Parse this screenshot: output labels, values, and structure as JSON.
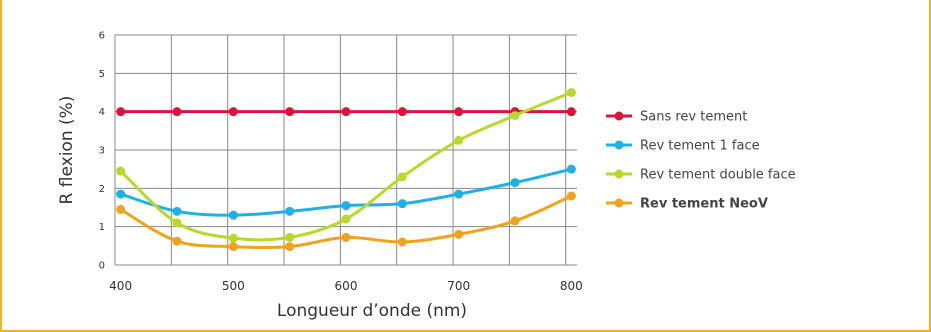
{
  "chart_data": {
    "type": "line",
    "title": "",
    "xlabel": "Longueur d’onde (nm)",
    "ylabel": "R flexion (%)",
    "xlim": [
      395,
      805
    ],
    "ylim": [
      0,
      6
    ],
    "x_ticks": [
      "400",
      "500",
      "600",
      "700",
      "800"
    ],
    "y_ticks": [
      "0",
      "1",
      "2",
      "3",
      "4",
      "5",
      "6"
    ],
    "x_grid": [
      395,
      445,
      495,
      545,
      595,
      645,
      695,
      745,
      795
    ],
    "grid": true,
    "legend_position": "right",
    "x": [
      400,
      450,
      500,
      550,
      600,
      650,
      700,
      750,
      800
    ],
    "series": [
      {
        "name": "Sans rev tement",
        "color": "#d6173c",
        "bold": false,
        "values": [
          4.0,
          4.0,
          4.0,
          4.0,
          4.0,
          4.0,
          4.0,
          4.0,
          4.0
        ]
      },
      {
        "name": "Rev tement 1 face",
        "color": "#1fb1e6",
        "bold": false,
        "values": [
          1.85,
          1.4,
          1.3,
          1.4,
          1.55,
          1.6,
          1.85,
          2.15,
          2.5
        ]
      },
      {
        "name": "Rev tement double face",
        "color": "#b8d82a",
        "bold": false,
        "values": [
          2.45,
          1.1,
          0.7,
          0.72,
          1.2,
          2.3,
          3.25,
          3.9,
          4.5
        ]
      },
      {
        "name": "Rev tement NeoV",
        "color": "#f0a21c",
        "bold": true,
        "values": [
          1.45,
          0.62,
          0.48,
          0.48,
          0.72,
          0.6,
          0.8,
          1.15,
          1.8
        ]
      }
    ]
  },
  "colors": {
    "frame": "#f0b323",
    "grid": "#888888"
  }
}
